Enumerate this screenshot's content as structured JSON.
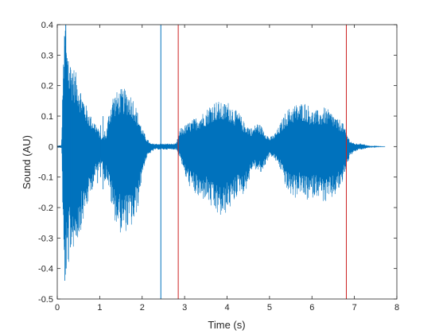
{
  "chart_data": {
    "type": "line",
    "title": "",
    "xlabel": "Time (s)",
    "ylabel": "Sound (AU)",
    "xlim": [
      0,
      8
    ],
    "ylim": [
      -0.5,
      0.4
    ],
    "xticks": [
      0,
      1,
      2,
      3,
      4,
      5,
      6,
      7,
      8
    ],
    "xtick_labels": [
      "0",
      "1",
      "2",
      "3",
      "4",
      "5",
      "6",
      "7",
      "8"
    ],
    "yticks": [
      0.4,
      0.3,
      0.2,
      0.1,
      0,
      -0.1,
      -0.2,
      -0.3,
      -0.4,
      -0.5
    ],
    "ytick_labels": [
      "0.4",
      "0.3",
      "0.2",
      "0.1",
      "0",
      "-0.1",
      "-0.2",
      "-0.3",
      "-0.4",
      "-0.5"
    ],
    "grid": false,
    "box": true,
    "colors": {
      "waveform": "#0072BD",
      "marker_blue": "#0072BD",
      "marker_red": "#D95319",
      "marker_red_line": "#CC2222",
      "axes": "#262626"
    },
    "series": [
      {
        "style": "waveform",
        "color": "#0072BD",
        "t_start": 0,
        "t_end": 7.72,
        "envelope": {
          "t": [
            0.0,
            0.05,
            0.1,
            0.15,
            0.2,
            0.25,
            0.3,
            0.4,
            0.5,
            0.6,
            0.7,
            0.8,
            0.9,
            1.0,
            1.05,
            1.1,
            1.15,
            1.2,
            1.3,
            1.4,
            1.5,
            1.6,
            1.7,
            1.8,
            1.9,
            2.0,
            2.1,
            2.2,
            2.3,
            2.4,
            2.5,
            2.6,
            2.7,
            2.8,
            2.9,
            3.0,
            3.1,
            3.2,
            3.3,
            3.4,
            3.5,
            3.6,
            3.7,
            3.8,
            3.9,
            4.0,
            4.1,
            4.2,
            4.3,
            4.4,
            4.5,
            4.6,
            4.7,
            4.8,
            4.9,
            5.0,
            5.1,
            5.2,
            5.3,
            5.4,
            5.5,
            5.6,
            5.7,
            5.8,
            5.9,
            6.0,
            6.1,
            6.2,
            6.3,
            6.4,
            6.5,
            6.6,
            6.7,
            6.8,
            6.9,
            7.0,
            7.1,
            7.2,
            7.3,
            7.4,
            7.5,
            7.6,
            7.72
          ],
          "upper": [
            0.003,
            0.004,
            0.005,
            0.36,
            0.38,
            0.3,
            0.28,
            0.26,
            0.22,
            0.17,
            0.13,
            0.1,
            0.08,
            0.05,
            0.03,
            0.04,
            0.04,
            0.1,
            0.17,
            0.18,
            0.19,
            0.19,
            0.18,
            0.16,
            0.11,
            0.06,
            0.03,
            0.01,
            0.01,
            0.01,
            0.01,
            0.01,
            0.01,
            0.01,
            0.06,
            0.07,
            0.08,
            0.09,
            0.1,
            0.11,
            0.12,
            0.14,
            0.15,
            0.15,
            0.14,
            0.15,
            0.14,
            0.12,
            0.11,
            0.08,
            0.07,
            0.06,
            0.08,
            0.07,
            0.05,
            0.03,
            0.04,
            0.06,
            0.09,
            0.12,
            0.13,
            0.14,
            0.14,
            0.15,
            0.14,
            0.12,
            0.12,
            0.12,
            0.13,
            0.12,
            0.11,
            0.09,
            0.09,
            0.05,
            0.02,
            0.01,
            0.01,
            0.01,
            0.004,
            0.002,
            0.001,
            0.0005,
            0.0002
          ],
          "lower": [
            -0.003,
            -0.004,
            -0.005,
            -0.44,
            -0.42,
            -0.4,
            -0.35,
            -0.33,
            -0.3,
            -0.25,
            -0.2,
            -0.15,
            -0.1,
            -0.07,
            -0.05,
            -0.13,
            -0.1,
            -0.13,
            -0.22,
            -0.26,
            -0.29,
            -0.28,
            -0.27,
            -0.26,
            -0.2,
            -0.09,
            -0.04,
            -0.02,
            -0.01,
            -0.01,
            -0.01,
            -0.01,
            -0.01,
            -0.01,
            -0.04,
            -0.1,
            -0.13,
            -0.15,
            -0.17,
            -0.18,
            -0.17,
            -0.2,
            -0.22,
            -0.23,
            -0.24,
            -0.21,
            -0.2,
            -0.17,
            -0.15,
            -0.16,
            -0.12,
            -0.07,
            -0.08,
            -0.09,
            -0.06,
            -0.03,
            -0.04,
            -0.06,
            -0.09,
            -0.15,
            -0.16,
            -0.17,
            -0.15,
            -0.17,
            -0.18,
            -0.17,
            -0.16,
            -0.17,
            -0.19,
            -0.18,
            -0.17,
            -0.15,
            -0.13,
            -0.07,
            -0.03,
            -0.02,
            -0.01,
            -0.01,
            -0.005,
            -0.003,
            -0.001,
            -0.0005,
            -0.0002
          ]
        }
      }
    ],
    "vertical_lines": [
      {
        "x": 0.2,
        "y_top": 0.4,
        "y_bottom": -0.28,
        "color": "#0072BD"
      },
      {
        "x": 2.44,
        "y_top": 0.4,
        "y_bottom": -0.5,
        "color": "#0072BD"
      },
      {
        "x": 2.85,
        "y_top": 0.4,
        "y_bottom": -0.5,
        "color": "#CC2222"
      },
      {
        "x": 6.81,
        "y_top": 0.4,
        "y_bottom": -0.5,
        "color": "#CC2222"
      }
    ]
  }
}
